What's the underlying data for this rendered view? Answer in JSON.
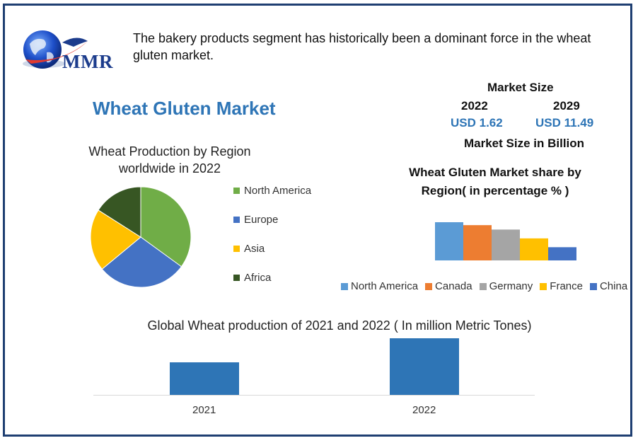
{
  "header": {
    "logo_text": "MMR",
    "headline": "The bakery products segment has historically been a dominant force in the wheat gluten market."
  },
  "main_title": "Wheat Gluten Market",
  "market_size": {
    "heading": "Market Size",
    "year_start": "2022",
    "year_end": "2029",
    "value_start": "USD 1.62",
    "value_end": "USD 11.49",
    "unit_label": "Market Size in Billion"
  },
  "colors": {
    "border": "#1f3f72",
    "title_blue": "#2e75b6",
    "north_america_pie": "#70ad47",
    "europe_pie": "#4472c4",
    "asia_pie": "#ffc000",
    "africa_pie": "#375623",
    "prod_bar": "#2e75b6"
  },
  "chart_data": [
    {
      "type": "pie",
      "title": "Wheat Production by Region worldwide in 2022",
      "labels": [
        "North America",
        "Europe",
        "Asia",
        "Africa"
      ],
      "values": [
        35,
        29,
        20,
        16
      ],
      "colors": [
        "#70ad47",
        "#4472c4",
        "#ffc000",
        "#375623"
      ],
      "legend": "right"
    },
    {
      "type": "bar",
      "title": "Wheat Gluten Market share by Region( in percentage % )",
      "categories": [
        "North America",
        "Canada",
        "Germany",
        "France",
        "China"
      ],
      "values": [
        26,
        24,
        21,
        15,
        9
      ],
      "colors": [
        "#5b9bd5",
        "#ed7d31",
        "#a5a5a5",
        "#ffc000",
        "#4472c4"
      ],
      "legend": "bottom",
      "grid": false
    },
    {
      "type": "bar",
      "title": "Global Wheat production of 2021 and 2022 ( In million Metric Tones)",
      "categories": [
        "2021",
        "2022"
      ],
      "values": [
        46,
        80
      ],
      "ylim": [
        0,
        80
      ],
      "color": "#2e75b6",
      "grid": false
    }
  ]
}
